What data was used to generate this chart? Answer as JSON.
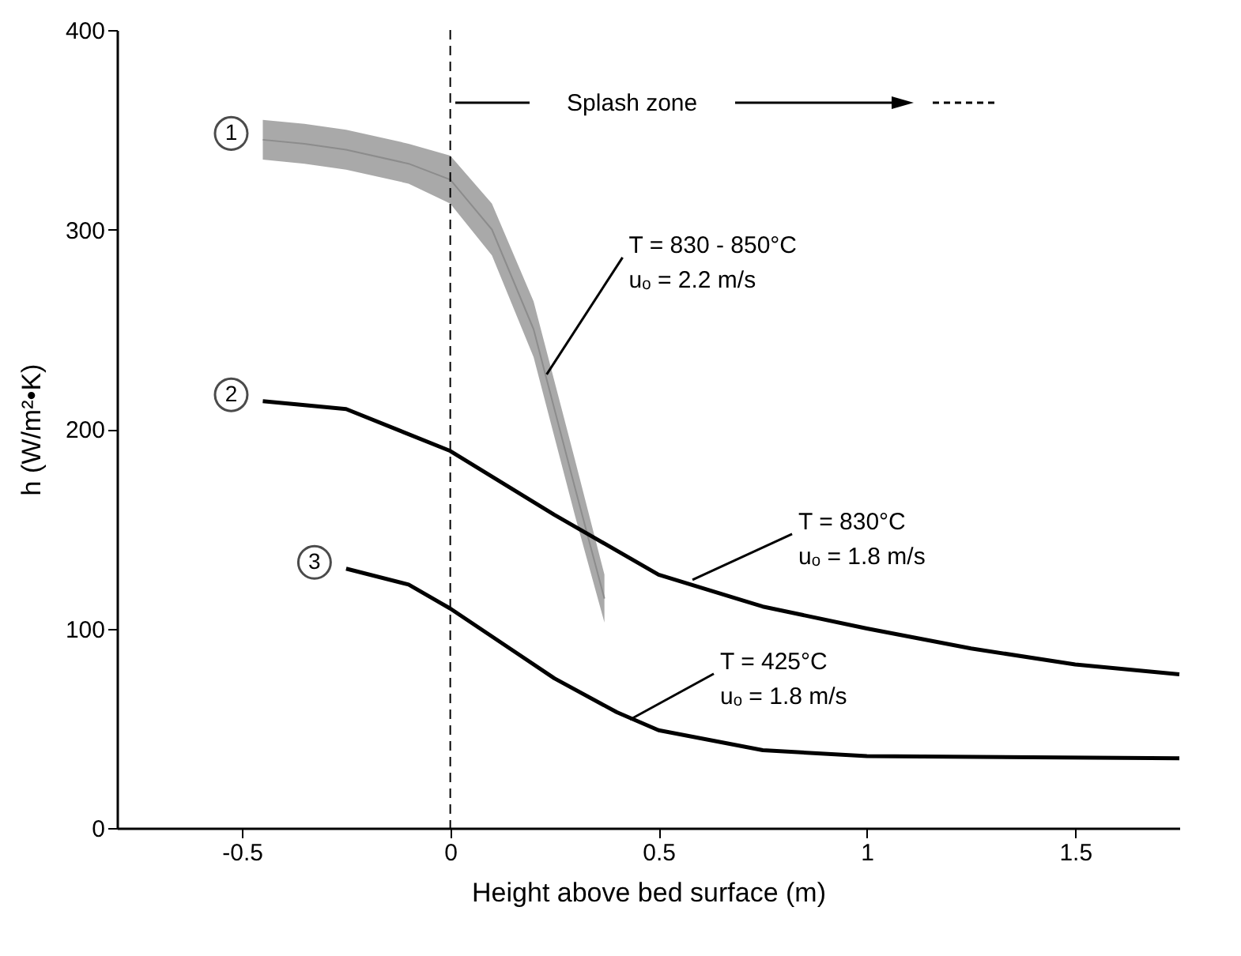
{
  "chart_data": {
    "type": "line",
    "xlabel": "Height above bed surface (m)",
    "ylabel": "h (W/m²•K)",
    "xlim": [
      -0.8,
      1.75
    ],
    "xticks": [
      -0.5,
      0,
      0.5,
      1,
      1.5
    ],
    "ylim": [
      0,
      400
    ],
    "yticks": [
      0,
      100,
      200,
      300,
      400
    ],
    "grid": false,
    "marker": "none",
    "series": [
      {
        "name": "1",
        "color": "#8c8c8c",
        "x": [
          -0.45,
          -0.35,
          -0.25,
          -0.1,
          0,
          0.1,
          0.2,
          0.3,
          0.37
        ],
        "values": [
          345,
          343,
          340,
          333,
          325,
          300,
          250,
          170,
          115
        ],
        "lower": [
          335,
          333,
          330,
          323,
          313,
          287,
          236,
          156,
          103
        ],
        "upper": [
          355,
          353,
          350,
          343,
          337,
          313,
          264,
          184,
          127
        ]
      },
      {
        "name": "2",
        "color": "#000000",
        "x": [
          -0.45,
          -0.25,
          0,
          0.25,
          0.5,
          0.75,
          1,
          1.25,
          1.5,
          1.75
        ],
        "values": [
          214,
          210,
          189,
          157,
          127,
          111,
          100,
          90,
          82,
          77
        ]
      },
      {
        "name": "3",
        "color": "#000000",
        "x": [
          -0.25,
          -0.1,
          0,
          0.15,
          0.25,
          0.4,
          0.5,
          0.75,
          1,
          1.75
        ],
        "values": [
          130,
          122,
          110,
          89,
          75,
          58,
          49,
          39,
          36,
          35
        ]
      }
    ],
    "ref_lines": [
      {
        "axis": "x",
        "value": 0,
        "line_style": "dashed",
        "color": "#000000"
      }
    ],
    "annotations": [
      "Splash zone",
      {
        "text": "T = 830 - 850°C\nuₒ = 2.2 m/s",
        "x": 0.22,
        "y": 225
      },
      {
        "text": "T = 830°C\nuₒ = 1.8 m/s",
        "x": 0.57,
        "y": 122
      },
      {
        "text": "T = 425°C\nuₒ = 1.8 m/s",
        "x": 0.42,
        "y": 52
      }
    ]
  }
}
